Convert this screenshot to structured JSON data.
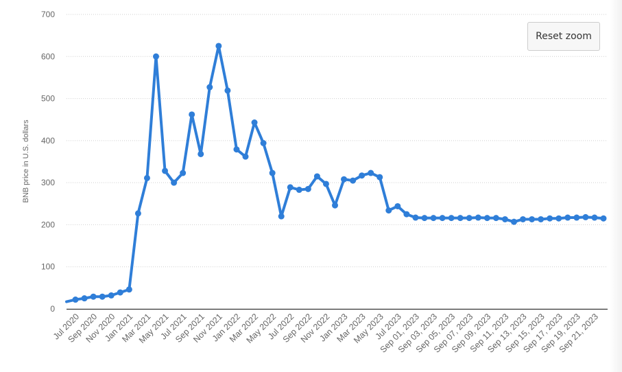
{
  "reset_zoom_label": "Reset zoom",
  "chart_data": {
    "type": "line",
    "ylabel": "BNB price in U.S. dollars",
    "xlabel": "",
    "ylim": [
      0,
      700
    ],
    "yticks": [
      0,
      100,
      200,
      300,
      400,
      500,
      600,
      700
    ],
    "grid": "horizontal dotted",
    "color": "#2f7ed8",
    "categories": [
      "Jun 2020",
      "Jul 2020",
      "Aug 2020",
      "Sep 2020",
      "Oct 2020",
      "Nov 2020",
      "Dec 2020",
      "Jan 2021",
      "Feb 2021",
      "Mar 2021",
      "Apr 2021",
      "May 2021",
      "Jun 2021",
      "Jul 2021",
      "Aug 2021",
      "Sep 2021",
      "Oct 2021",
      "Nov 2021",
      "Dec 2021",
      "Jan 2022",
      "Feb 2022",
      "Mar 2022",
      "Apr 2022",
      "May 2022",
      "Jun 2022",
      "Jul 2022",
      "Aug 2022",
      "Sep 2022",
      "Oct 2022",
      "Nov 2022",
      "Dec 2022",
      "Jan 2023",
      "Feb 2023",
      "Mar 2023",
      "Apr 2023",
      "May 2023",
      "Jun 2023",
      "Jul 2023",
      "Aug 2023",
      "Sep 01, 2023",
      "Sep 02, 2023",
      "Sep 03, 2023",
      "Sep 04, 2023",
      "Sep 05, 2023",
      "Sep 06, 2023",
      "Sep 07, 2023",
      "Sep 08, 2023",
      "Sep 09, 2023",
      "Sep 10, 2023",
      "Sep 11, 2023",
      "Sep 12, 2023",
      "Sep 13, 2023",
      "Sep 14, 2023",
      "Sep 15, 2023",
      "Sep 16, 2023",
      "Sep 17, 2023",
      "Sep 18, 2023",
      "Sep 19, 2023",
      "Sep 20, 2023",
      "Sep 21, 2023",
      "Sep 22, 2023"
    ],
    "tick_labels": [
      "Jul 2020",
      "Sep 2020",
      "Nov 2020",
      "Jan 2021",
      "Mar 2021",
      "May 2021",
      "Jul 2021",
      "Sep 2021",
      "Nov 2021",
      "Jan 2022",
      "Mar 2022",
      "May 2022",
      "Jul 2022",
      "Sep 2022",
      "Nov 2022",
      "Jan 2023",
      "Mar 2023",
      "May 2023",
      "Jul 2023",
      "Sep 01, 2023",
      "Sep 03, 2023",
      "Sep 05, 2023",
      "Sep 07, 2023",
      "Sep 09, 2023",
      "Sep 11, 2023",
      "Sep 13, 2023",
      "Sep 15, 2023",
      "Sep 17, 2023",
      "Sep 19, 2023",
      "Sep 21, 2023"
    ],
    "values": [
      17,
      22,
      25,
      29,
      29,
      32,
      39,
      46,
      227,
      311,
      600,
      328,
      300,
      323,
      462,
      368,
      527,
      625,
      519,
      379,
      362,
      443,
      394,
      323,
      220,
      289,
      283,
      285,
      315,
      297,
      246,
      308,
      305,
      317,
      323,
      313,
      234,
      244,
      225,
      217,
      216,
      216,
      216,
      216,
      216,
      216,
      217,
      216,
      216,
      213,
      207,
      213,
      213,
      213,
      215,
      215,
      217,
      217,
      218,
      217,
      215
    ]
  }
}
